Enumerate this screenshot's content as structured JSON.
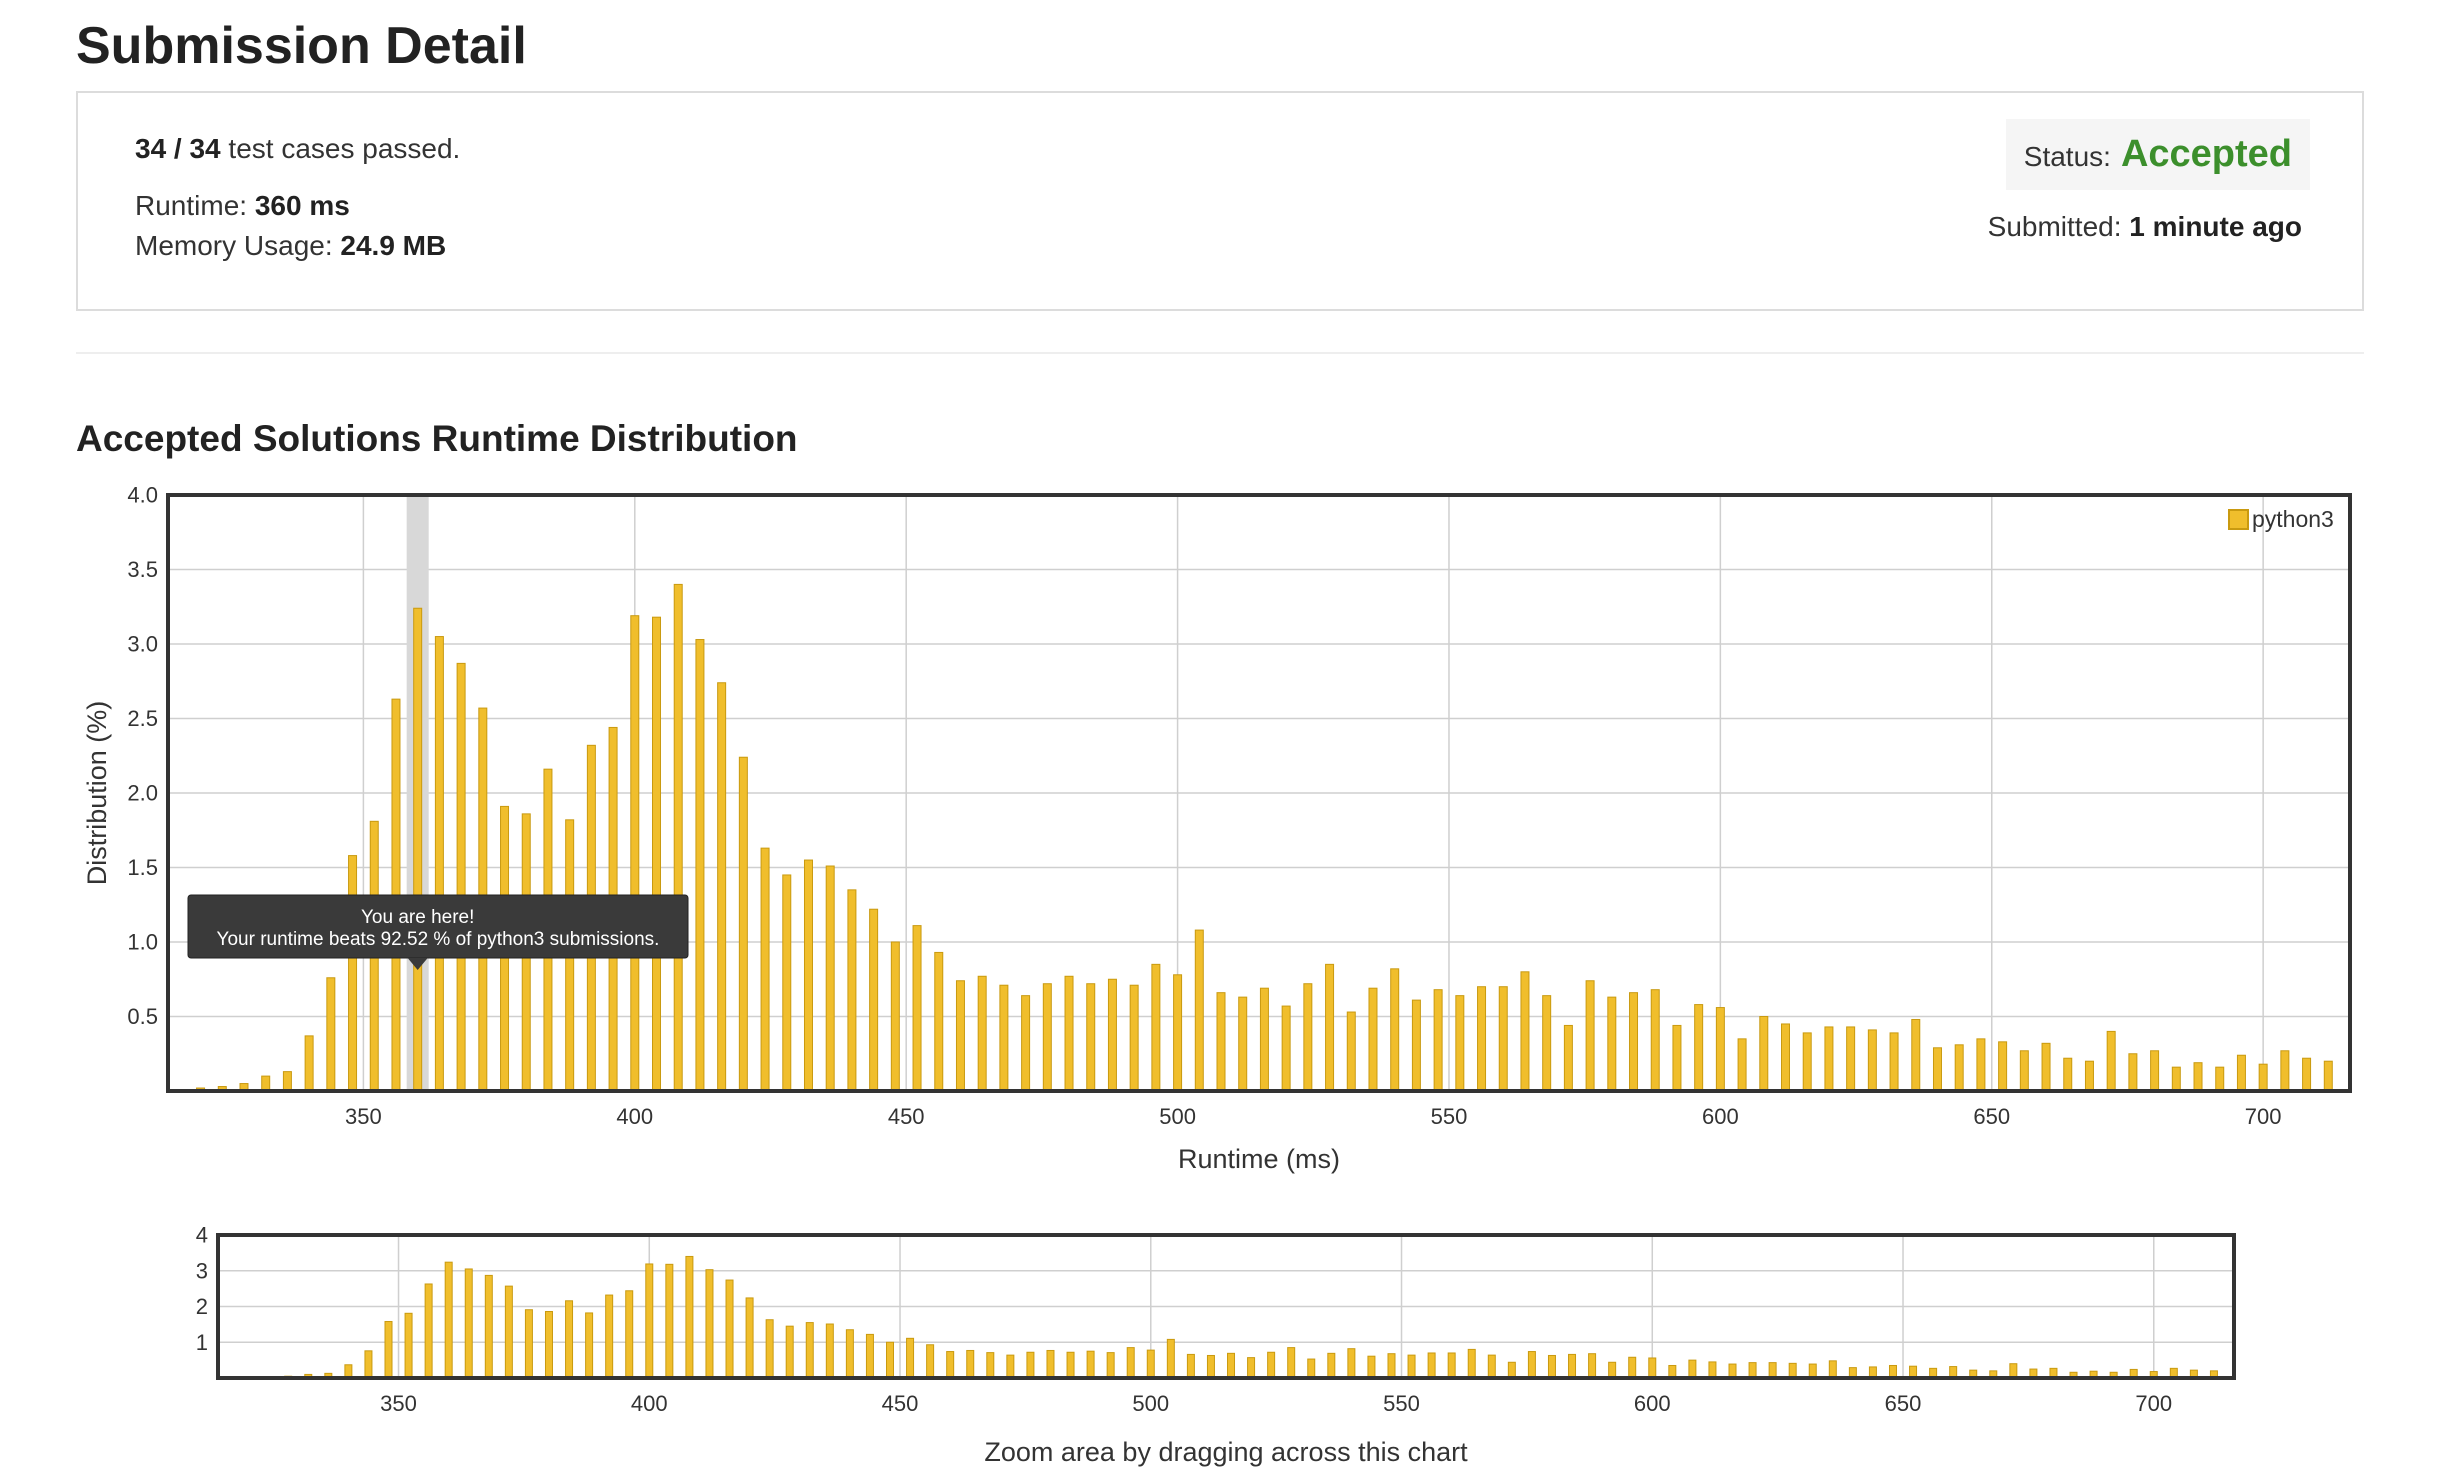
{
  "page": {
    "title": "Submission Detail"
  },
  "detail": {
    "tests_passed_count": "34 / 34",
    "tests_passed_suffix": "test cases passed.",
    "runtime_label": "Runtime:",
    "runtime_value": "360 ms",
    "memory_label": "Memory Usage:",
    "memory_value": "24.9 MB",
    "status_label": "Status:",
    "status_value": "Accepted",
    "submitted_label": "Submitted:",
    "submitted_value": "1 minute ago"
  },
  "colors": {
    "accent": "#3c8f2c",
    "bar_fill": "#f0be2c",
    "bar_stroke": "#c99a10",
    "highlight_band": "#d8d8d8"
  },
  "section": {
    "title": "Accepted Solutions Runtime Distribution"
  },
  "tooltip": {
    "line1": "You are here!",
    "line2": "Your runtime beats 92.52 % of python3 submissions."
  },
  "chart_data": [
    {
      "type": "bar",
      "title": "",
      "xlabel": "Runtime (ms)",
      "ylabel": "Distribution (%)",
      "xlim": [
        314,
        716
      ],
      "ylim": [
        0,
        4.0
      ],
      "xticks": [
        350,
        400,
        450,
        500,
        550,
        600,
        650,
        700
      ],
      "yticks": [
        0.5,
        1.0,
        1.5,
        2.0,
        2.5,
        3.0,
        3.5,
        4.0
      ],
      "grid": true,
      "legend_position": "top-right",
      "highlight_x": 360,
      "series": [
        {
          "name": "python3",
          "x": [
            320,
            324,
            328,
            332,
            336,
            340,
            344,
            348,
            352,
            356,
            360,
            364,
            368,
            372,
            376,
            380,
            384,
            388,
            392,
            396,
            400,
            404,
            408,
            412,
            416,
            420,
            424,
            428,
            432,
            436,
            440,
            444,
            448,
            452,
            456,
            460,
            464,
            468,
            472,
            476,
            480,
            484,
            488,
            492,
            496,
            500,
            504,
            508,
            512,
            516,
            520,
            524,
            528,
            532,
            536,
            540,
            544,
            548,
            552,
            556,
            560,
            564,
            568,
            572,
            576,
            580,
            584,
            588,
            592,
            596,
            600,
            604,
            608,
            612,
            616,
            620,
            624,
            628,
            632,
            636,
            640,
            644,
            648,
            652,
            656,
            660,
            664,
            668,
            672,
            676,
            680,
            684,
            688,
            692,
            696,
            700,
            704,
            708,
            712
          ],
          "values": [
            0.02,
            0.03,
            0.05,
            0.1,
            0.13,
            0.37,
            0.76,
            1.58,
            1.81,
            2.63,
            3.24,
            3.05,
            2.87,
            2.57,
            1.91,
            1.86,
            2.16,
            1.82,
            2.32,
            2.44,
            3.19,
            3.18,
            3.4,
            3.03,
            2.74,
            2.24,
            1.63,
            1.45,
            1.55,
            1.51,
            1.35,
            1.22,
            1.0,
            1.11,
            0.93,
            0.74,
            0.77,
            0.71,
            0.64,
            0.72,
            0.77,
            0.72,
            0.75,
            0.71,
            0.85,
            0.78,
            1.08,
            0.66,
            0.63,
            0.69,
            0.57,
            0.72,
            0.85,
            0.53,
            0.69,
            0.82,
            0.61,
            0.68,
            0.64,
            0.7,
            0.7,
            0.8,
            0.64,
            0.44,
            0.74,
            0.63,
            0.66,
            0.68,
            0.44,
            0.58,
            0.56,
            0.35,
            0.5,
            0.45,
            0.39,
            0.43,
            0.43,
            0.41,
            0.39,
            0.48,
            0.29,
            0.31,
            0.35,
            0.33,
            0.27,
            0.32,
            0.22,
            0.2,
            0.4,
            0.25,
            0.27,
            0.16,
            0.19,
            0.16,
            0.24,
            0.18,
            0.27,
            0.22,
            0.2
          ]
        }
      ]
    },
    {
      "type": "bar",
      "title": "",
      "xlabel": "Zoom area by dragging across this chart",
      "ylabel": "",
      "xlim": [
        314,
        716
      ],
      "ylim": [
        0,
        4
      ],
      "xticks": [
        350,
        400,
        450,
        500,
        550,
        600,
        650,
        700
      ],
      "yticks": [
        1,
        2,
        3,
        4
      ],
      "grid": true,
      "series": [
        {
          "name": "python3",
          "source": "same as main chart"
        }
      ]
    }
  ]
}
